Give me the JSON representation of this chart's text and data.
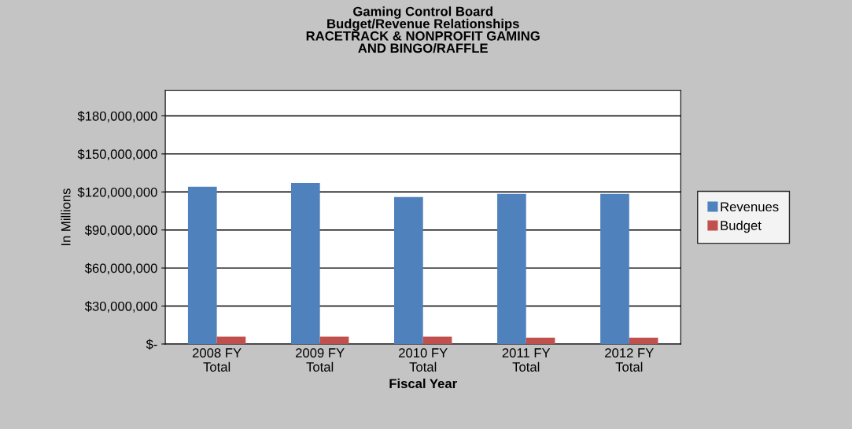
{
  "chart_data": {
    "type": "bar",
    "title": "Gaming Control Board\nBudget/Revenue Relationships\nRACETRACK & NONPROFIT GAMING\nAND BINGO/RAFFLE",
    "xlabel": "Fiscal Year",
    "ylabel": "In Millions",
    "categories": [
      "2008 FY\nTotal",
      "2009 FY\nTotal",
      "2010 FY\nTotal",
      "2011 FY\nTotal",
      "2012 FY\nTotal"
    ],
    "series": [
      {
        "name": "Revenues",
        "color": "#4f81bd",
        "values": [
          124000000,
          127000000,
          116000000,
          118500000,
          118500000
        ]
      },
      {
        "name": "Budget",
        "color": "#c0504d",
        "values": [
          5800000,
          5800000,
          5800000,
          5000000,
          5000000
        ]
      }
    ],
    "ylim": [
      0,
      200000000
    ],
    "yticks": [
      {
        "value": 0,
        "label": "$-"
      },
      {
        "value": 30000000,
        "label": "$30,000,000"
      },
      {
        "value": 60000000,
        "label": "$60,000,000"
      },
      {
        "value": 90000000,
        "label": "$90,000,000"
      },
      {
        "value": 120000000,
        "label": "$120,000,000"
      },
      {
        "value": 150000000,
        "label": "$150,000,000"
      },
      {
        "value": 180000000,
        "label": "$180,000,000"
      }
    ],
    "grid": "y",
    "legend": "right"
  }
}
